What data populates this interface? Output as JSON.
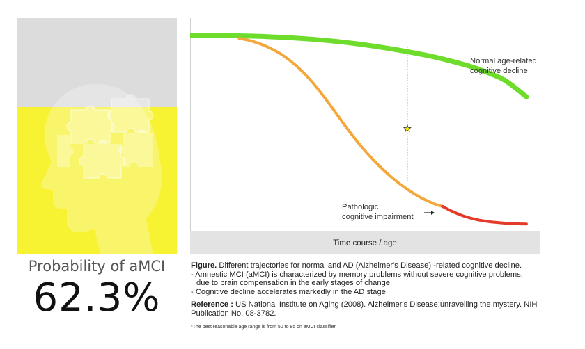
{
  "probability": {
    "label": "Probability of aMCI",
    "value_text": "62.3%",
    "value": 0.623
  },
  "colors": {
    "panel_gray": "#dcdcdc",
    "panel_yellow": "#f7f232",
    "normal_green": "#6edc2a",
    "amci_orange": "#f4a73a",
    "ad_red": "#e33a2a",
    "axis_bar": "#e3e3e3",
    "star": "#f7e51a"
  },
  "chart_data": {
    "type": "line",
    "xlabel": "Time course / age",
    "ylabel": "",
    "series": [
      {
        "key": "normal",
        "name": "Normal age-related cognitive decline",
        "x": [
          0,
          10,
          20,
          30,
          40,
          50,
          60,
          70,
          80,
          85,
          90,
          96
        ],
        "y": [
          92,
          91.8,
          91.4,
          90.6,
          89.3,
          87.4,
          84.8,
          81.6,
          77.3,
          74.3,
          70.6,
          63
        ]
      },
      {
        "key": "amci",
        "x": [
          14,
          18,
          22,
          26,
          30,
          34,
          38,
          42,
          46,
          50,
          54,
          58,
          62,
          66,
          70,
          72
        ],
        "y": [
          90.5,
          89,
          86.5,
          83,
          78,
          71.5,
          63.5,
          54.5,
          45.5,
          37.5,
          30.5,
          24.5,
          19.5,
          15.5,
          12.5,
          11.5
        ]
      },
      {
        "key": "ad",
        "name": "Pathologic cognitive impairment",
        "x": [
          72,
          75,
          78,
          81,
          84,
          87,
          90,
          93,
          96
        ],
        "y": [
          11.5,
          9,
          7,
          5.6,
          4.6,
          4,
          3.6,
          3.3,
          3.2
        ]
      }
    ],
    "annotations": [
      {
        "key": "normal",
        "text_lines": [
          "Normal age-related",
          "cognitive decline"
        ]
      },
      {
        "key": "ad",
        "text_lines": [
          "Pathologic",
          "cognitive impairment"
        ]
      }
    ],
    "current_marker": {
      "x": 62,
      "y": 48,
      "symbol": "star"
    },
    "reference_line": {
      "x": 62,
      "y_top": 86.7,
      "y_bottom": 23
    }
  },
  "caption": {
    "figure_label": "Figure.",
    "figure_text": " Different trajectories for normal and AD (Alzheimer's Disease) -related cognitive decline.",
    "line1": "- Amnestic MCI (aMCI) is characterized by memory problems without severe cognitive problems,",
    "line1b": "due to brain compensation in the early stages of change.",
    "line2": "- Cognitive decline accelerates markedly in the AD stage.",
    "reference_label": "Reference :",
    "reference_text": " US National Institute on Aging (2008). Alzheimer's Disease:unravelling the mystery. NIH Publication No. 08-3782.",
    "footnote": "*The best reasonable age range is from 50 to 85 on aMCI classifier."
  }
}
